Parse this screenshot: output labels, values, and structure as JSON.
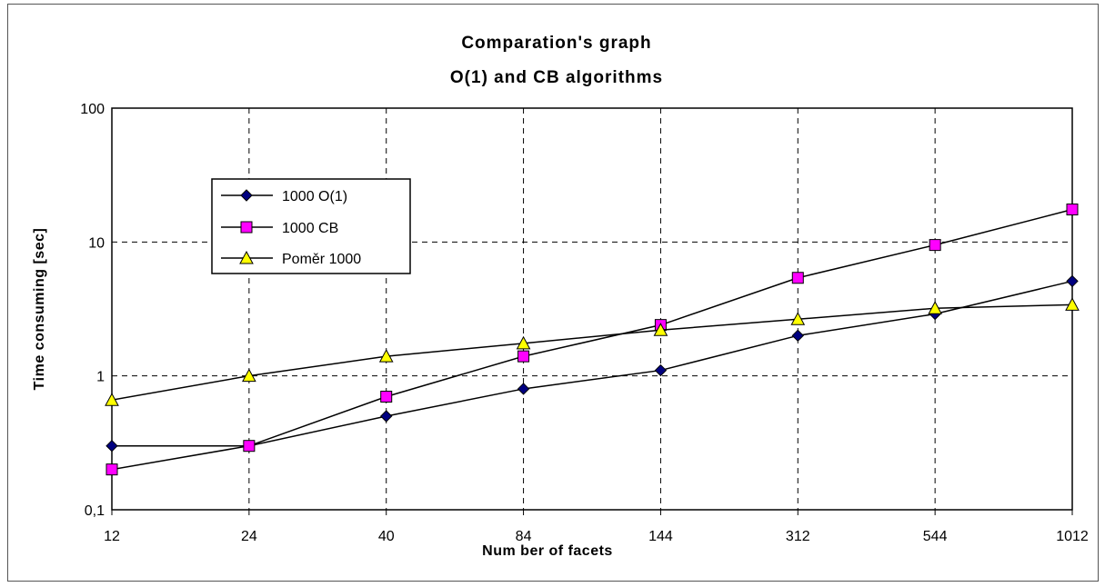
{
  "chart_data": {
    "type": "line",
    "title": "Comparation's graph",
    "subtitle": "O(1) and CB algorithms",
    "xlabel": "Num ber of facets",
    "ylabel": "Time consuming [sec]",
    "categories": [
      "12",
      "24",
      "40",
      "84",
      "144",
      "312",
      "544",
      "1012"
    ],
    "y_scale": "log",
    "ylim": [
      0.1,
      100
    ],
    "yticks": [
      "0,1",
      "1",
      "10",
      "100"
    ],
    "grid": "dashed",
    "legend_position": "upper-left inside plot",
    "series": [
      {
        "name": "1000 O(1)",
        "marker": "diamond",
        "marker_color": "#000080",
        "values": [
          0.3,
          0.3,
          0.5,
          0.8,
          1.1,
          2.0,
          2.9,
          5.1
        ]
      },
      {
        "name": "1000 CB",
        "marker": "square",
        "marker_color": "#ff00ff",
        "values": [
          0.2,
          0.3,
          0.7,
          1.4,
          2.4,
          5.4,
          9.5,
          17.5
        ]
      },
      {
        "name": "Poměr 1000",
        "marker": "triangle",
        "marker_color": "#ffff00",
        "values": [
          0.66,
          1.0,
          1.4,
          1.75,
          2.2,
          2.65,
          3.2,
          3.4
        ]
      }
    ]
  }
}
